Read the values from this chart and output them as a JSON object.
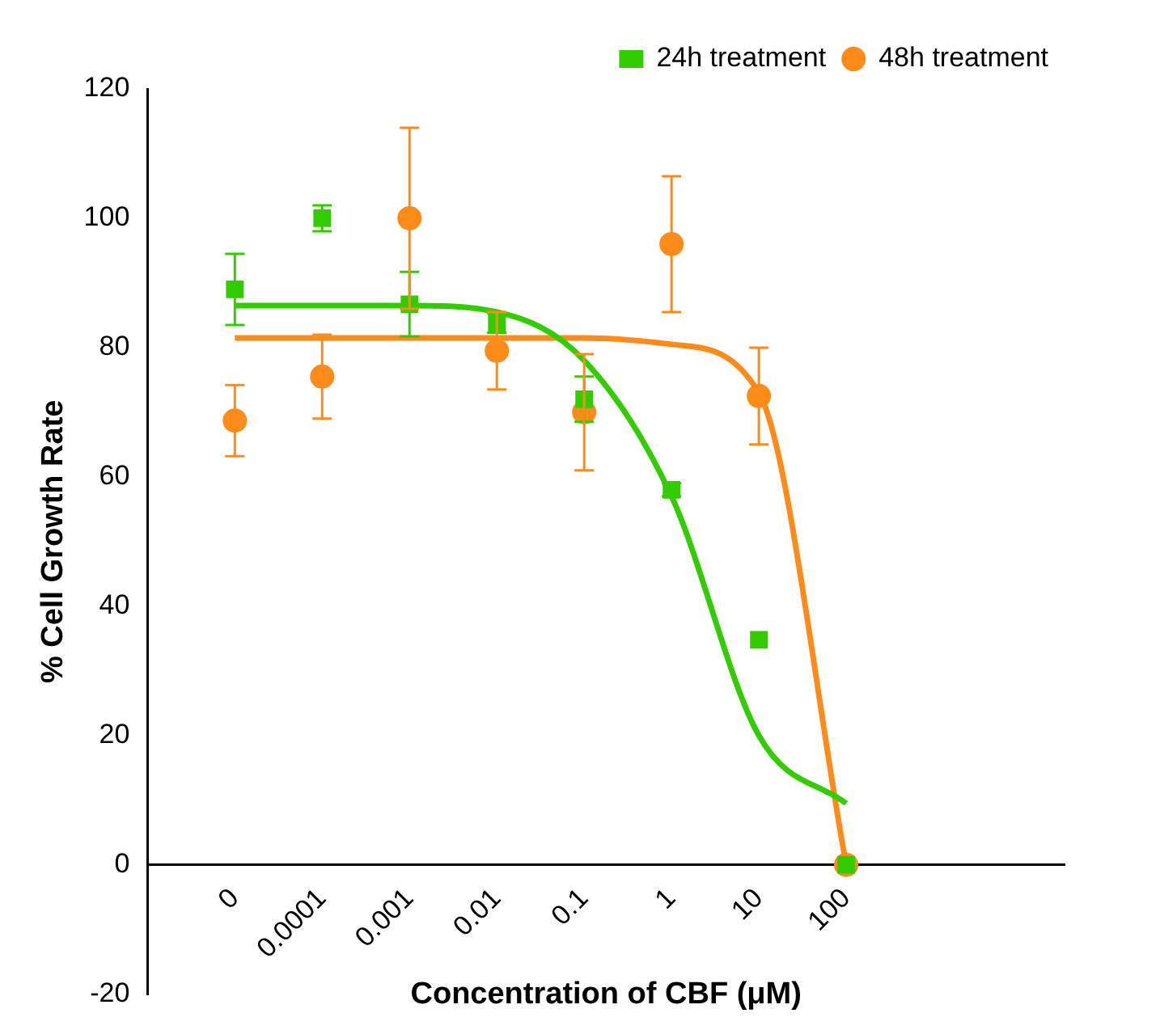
{
  "chart_data": {
    "type": "scatter",
    "xlabel": "Concentration of CBF (μM)",
    "ylabel": "% Cell Growth Rate",
    "categories": [
      "0",
      "0.0001",
      "0.001",
      "0.01",
      "0.1",
      "1",
      "10",
      "100"
    ],
    "ylim": [
      -20,
      120
    ],
    "yticks": [
      -20,
      0,
      20,
      40,
      60,
      80,
      100,
      120
    ],
    "grid": false,
    "legend": "top right",
    "series": [
      {
        "name": "24h treatment",
        "type": "scatter",
        "color": "#33cc00",
        "marker": "square",
        "values": [
          89,
          100,
          86.7,
          83.8,
          72,
          58,
          34.8,
          0
        ],
        "errors": [
          5.5,
          2,
          5,
          1.5,
          3.5,
          1,
          null,
          null
        ]
      },
      {
        "name": "48h treatment",
        "type": "scatter",
        "color": "#ff8c1a",
        "marker": "circle",
        "values": [
          68.7,
          75.5,
          100,
          79.5,
          70,
          96,
          72.5,
          0
        ],
        "errors": [
          5.5,
          6.5,
          14,
          6,
          9,
          10.5,
          7.5,
          null
        ]
      },
      {
        "type": "line",
        "color": "#33cc00",
        "marker": "none",
        "line_style": "solid",
        "values": [
          86.5,
          86.5,
          86.5,
          85.5,
          78,
          57,
          20,
          9.5
        ]
      },
      {
        "type": "line",
        "color": "#ff8c1a",
        "marker": "none",
        "line_style": "solid",
        "values": [
          81.5,
          81.5,
          81.5,
          81.5,
          81.5,
          80.5,
          73,
          0
        ]
      }
    ]
  }
}
